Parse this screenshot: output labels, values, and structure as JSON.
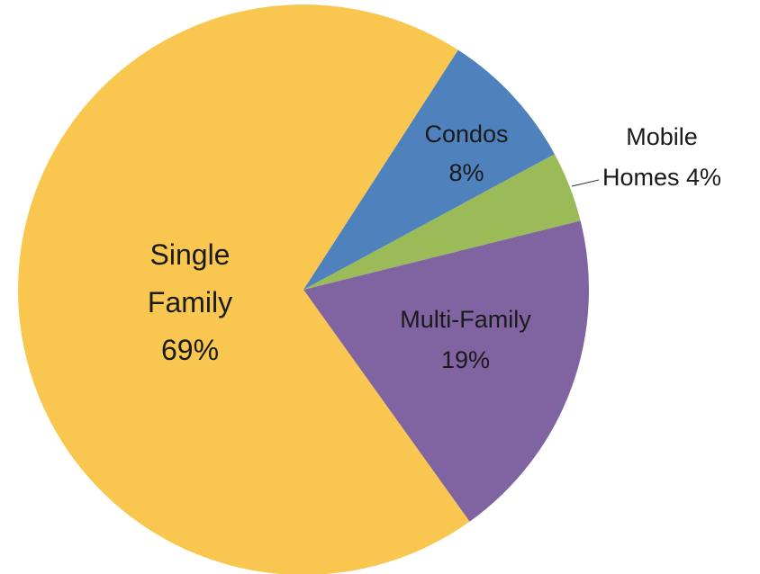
{
  "chart_data": {
    "type": "pie",
    "categories": [
      "Single Family",
      "Condos",
      "Mobile Homes",
      "Multi-Family"
    ],
    "values": [
      69,
      8,
      4,
      19
    ],
    "value_labels": [
      "69%",
      "8%",
      "4%",
      "19%"
    ],
    "colors": [
      "#f9c74f",
      "#4f81bd",
      "#9bbb59",
      "#8064a2"
    ]
  }
}
